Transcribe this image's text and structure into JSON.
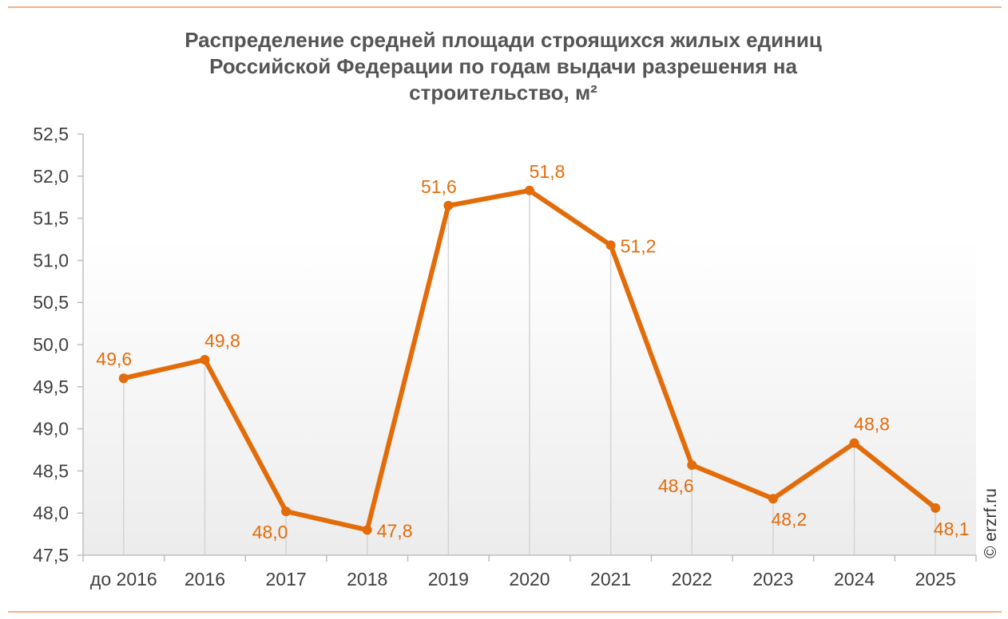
{
  "title_lines": [
    "Распределение средней площади строящихся  жилых единиц",
    "Российской  Федерации по годам выдачи разрешения на",
    "строительство,  м²"
  ],
  "watermark": "© erzrf.ru",
  "colors": {
    "series": "#E36C0A",
    "label": "#E36C0A",
    "axis": "#BFBFBF",
    "tick_text": "#404040",
    "title": "#555555",
    "rule": "#F4B183"
  },
  "chart_data": {
    "type": "line",
    "title": "Распределение средней площади строящихся жилых единиц Российской Федерации по годам выдачи разрешения на строительство, м²",
    "categories": [
      "до 2016",
      "2016",
      "2017",
      "2018",
      "2019",
      "2020",
      "2021",
      "2022",
      "2023",
      "2024",
      "2025"
    ],
    "values": [
      49.6,
      49.82,
      48.02,
      47.8,
      51.65,
      51.83,
      51.18,
      48.57,
      48.17,
      48.83,
      48.06
    ],
    "data_labels": [
      "49,6",
      "49,8",
      "48,0",
      "47,8",
      "51,6",
      "51,8",
      "51,2",
      "48,6",
      "48,2",
      "48,8",
      "48,1"
    ],
    "label_positions": [
      "above",
      "above",
      "below",
      "right",
      "above",
      "above",
      "right",
      "below",
      "below",
      "above",
      "below"
    ],
    "ylim": [
      47.5,
      52.5
    ],
    "yticks": [
      47.5,
      48.0,
      48.5,
      49.0,
      49.5,
      50.0,
      50.5,
      51.0,
      51.5,
      52.0,
      52.5
    ],
    "ytick_labels": [
      "47,5",
      "48,0",
      "48,5",
      "49,0",
      "49,5",
      "50,0",
      "50,5",
      "51,0",
      "51,5",
      "52,0",
      "52,5"
    ],
    "drop_lines": true,
    "grid": false,
    "legend": "none",
    "xlabel": "",
    "ylabel": ""
  }
}
